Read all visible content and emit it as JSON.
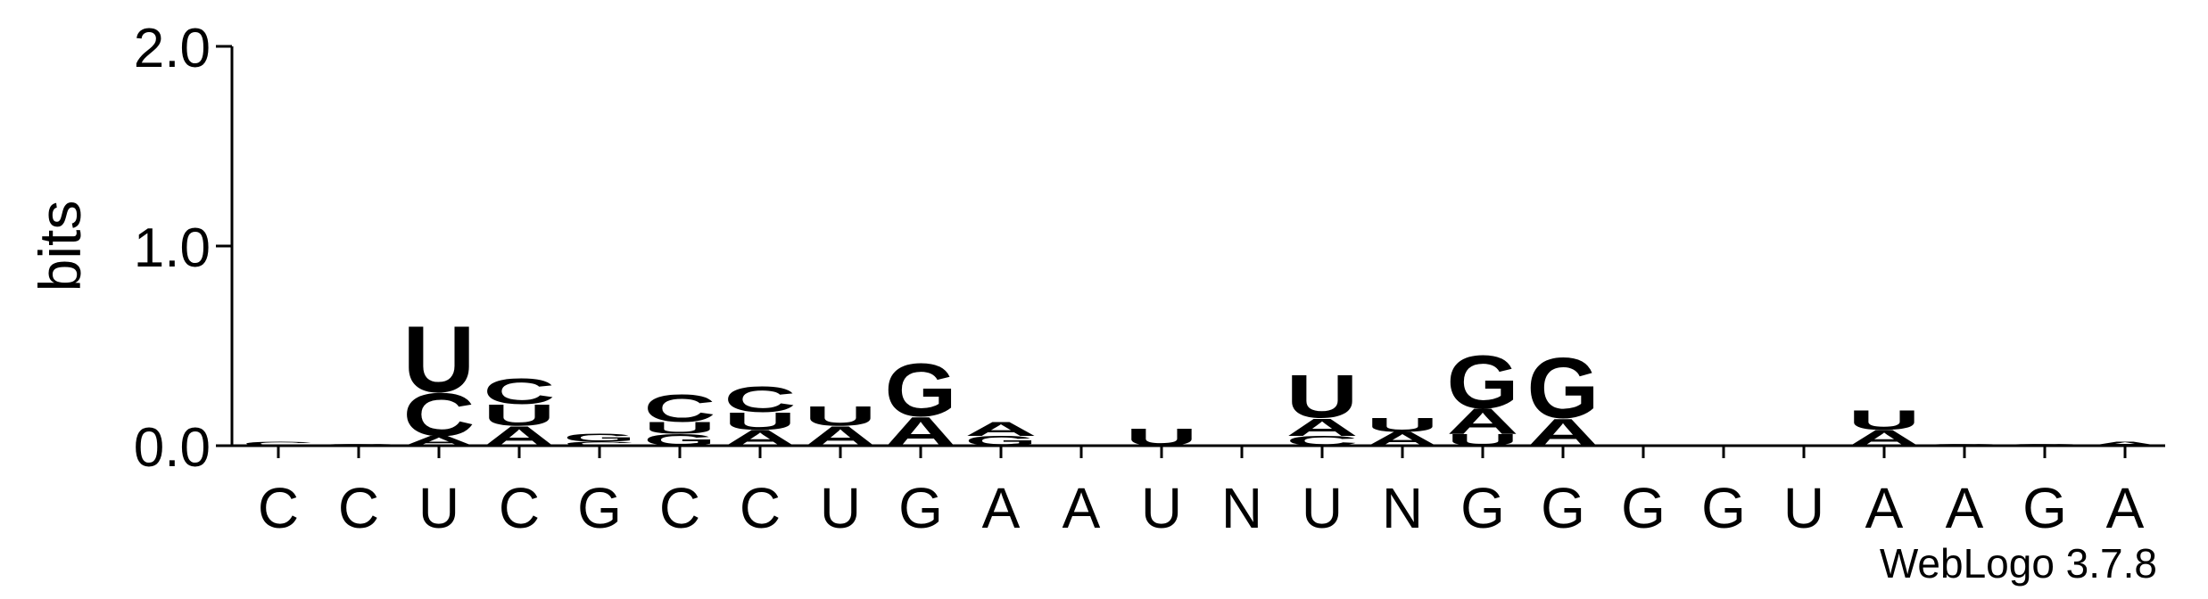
{
  "chart_data": {
    "type": "logo",
    "ylabel": "bits",
    "footer": "WebLogo 3.7.8",
    "ylim": [
      0,
      2
    ],
    "yticks": [
      {
        "value": 0,
        "label": "0.0"
      },
      {
        "value": 1,
        "label": "1.0"
      },
      {
        "value": 2,
        "label": "2.0"
      }
    ],
    "categories": [
      "C",
      "C",
      "U",
      "C",
      "G",
      "C",
      "C",
      "U",
      "G",
      "A",
      "A",
      "U",
      "N",
      "U",
      "N",
      "G",
      "G",
      "G",
      "G",
      "U",
      "A",
      "A",
      "G",
      "A"
    ],
    "series": [
      {
        "name": "A",
        "color": "#ff8c00",
        "values": [
          0,
          0,
          0.05,
          0.1,
          0,
          0,
          0.08,
          0.1,
          0.15,
          0.07,
          0,
          0,
          0,
          0.09,
          0.07,
          0.13,
          0.14,
          0,
          0,
          0,
          0.08,
          0,
          0,
          0.02
        ]
      },
      {
        "name": "C",
        "color": "#0000ff",
        "values": [
          0.02,
          0.01,
          0.22,
          0.13,
          0.02,
          0.14,
          0.13,
          0,
          0,
          0,
          0,
          0,
          0,
          0.05,
          0,
          0,
          0,
          0,
          0,
          0,
          0,
          0,
          0,
          0
        ]
      },
      {
        "name": "G",
        "color": "#0000ff",
        "values": [
          0,
          0,
          0,
          0,
          0.04,
          0.06,
          0,
          0,
          0.27,
          0.05,
          0,
          0,
          0,
          0,
          0,
          0.27,
          0.31,
          0,
          0,
          0,
          0,
          0.01,
          0.01,
          0
        ]
      },
      {
        "name": "U",
        "color": "#ff8c00",
        "values": [
          0,
          0,
          0.34,
          0.11,
          0,
          0.06,
          0.09,
          0.1,
          0,
          0,
          0,
          0.09,
          0,
          0.22,
          0.07,
          0.06,
          0,
          0,
          0,
          0,
          0.1,
          0,
          0,
          0
        ]
      }
    ]
  }
}
